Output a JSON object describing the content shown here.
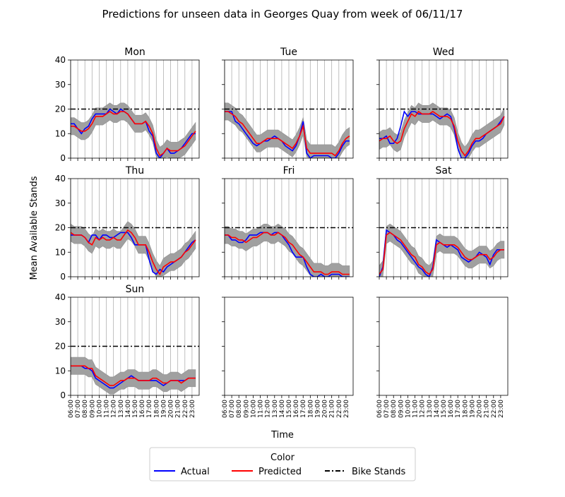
{
  "chart_data": {
    "type": "line",
    "title": "Predictions for unseen data in Georges Quay from week of 06/11/17",
    "xlabel": "Time",
    "ylabel": "Mean Available Stands",
    "ylim": [
      0,
      40
    ],
    "yticks": [
      0,
      10,
      20,
      30,
      40
    ],
    "time_ticks": [
      "06:00",
      "07:00",
      "08:00",
      "09:00",
      "10:00",
      "11:00",
      "12:00",
      "13:00",
      "14:00",
      "15:00",
      "16:00",
      "17:00",
      "18:00",
      "19:00",
      "20:00",
      "21:00",
      "22:00",
      "23:00"
    ],
    "grid": true,
    "bike_stands": 20,
    "band_half_width": 3.5,
    "colors": {
      "actual": "#0000ff",
      "predicted": "#ff0000",
      "bike_stands": "#000000",
      "band": "#a0a0a0"
    },
    "legend": {
      "title": "Color",
      "position": "bottom-center",
      "entries": [
        {
          "label": "Actual",
          "color": "#0000ff",
          "style": "solid"
        },
        {
          "label": "Predicted",
          "color": "#ff0000",
          "style": "solid"
        },
        {
          "label": "Bike Stands",
          "color": "#000000",
          "style": "dashdot"
        }
      ]
    },
    "panels": [
      {
        "title": "Mon",
        "x": [
          6,
          6.5,
          7,
          7.5,
          8,
          8.5,
          9,
          9.5,
          10,
          10.5,
          11,
          11.5,
          12,
          12.5,
          13,
          13.5,
          14,
          14.5,
          15,
          15.5,
          16,
          16.5,
          17,
          17.5,
          18,
          18.5,
          19,
          19.5,
          20,
          20.5,
          21,
          21.5,
          22,
          22.5,
          23,
          23.5
        ],
        "actual": [
          14,
          14,
          12,
          10,
          12,
          13,
          16,
          18,
          18,
          18,
          18,
          20,
          19,
          18,
          20,
          19,
          18,
          16,
          14,
          14,
          14,
          15,
          11,
          9,
          2,
          0,
          2,
          4,
          2,
          2,
          3,
          4,
          6,
          8,
          10,
          10
        ],
        "predicted": [
          13,
          13,
          12,
          11,
          11,
          12,
          14,
          17,
          17,
          17,
          18,
          19,
          18,
          18,
          19,
          19,
          18,
          16,
          14,
          14,
          14,
          15,
          13,
          10,
          4,
          1,
          2,
          4,
          3,
          3,
          3,
          4,
          5,
          7,
          9,
          11
        ]
      },
      {
        "title": "Tue",
        "x": [
          6,
          6.5,
          7,
          7.5,
          8,
          8.5,
          9,
          9.5,
          10,
          10.5,
          11,
          11.5,
          12,
          12.5,
          13,
          13.5,
          14,
          14.5,
          15,
          15.5,
          16,
          16.5,
          17,
          17.5,
          18,
          18.5,
          19,
          19.5,
          20,
          20.5,
          21,
          21.5,
          22,
          22.5,
          23,
          23.5
        ],
        "actual": [
          19,
          19,
          19,
          15,
          14,
          12,
          10,
          8,
          6,
          5,
          6,
          7,
          7,
          8,
          9,
          8,
          7,
          5,
          4,
          3,
          5,
          9,
          15,
          2,
          0,
          1,
          1,
          1,
          1,
          1,
          0,
          0,
          2,
          5,
          7,
          7
        ],
        "predicted": [
          19,
          19,
          18,
          17,
          15,
          14,
          12,
          10,
          8,
          6,
          6,
          7,
          8,
          8,
          8,
          8,
          7,
          6,
          5,
          4,
          6,
          9,
          13,
          4,
          2,
          2,
          2,
          2,
          2,
          2,
          2,
          1,
          3,
          6,
          8,
          9
        ]
      },
      {
        "title": "Wed",
        "x": [
          6,
          6.5,
          7,
          7.5,
          8,
          8.5,
          9,
          9.5,
          10,
          10.5,
          11,
          11.5,
          12,
          12.5,
          13,
          13.5,
          14,
          14.5,
          15,
          15.5,
          16,
          16.5,
          17,
          17.5,
          18,
          18.5,
          19,
          19.5,
          20,
          20.5,
          21,
          21.5,
          22,
          22.5,
          23,
          23.5
        ],
        "actual": [
          8,
          8,
          9,
          6,
          6,
          8,
          13,
          19,
          17,
          19,
          19,
          18,
          18,
          18,
          18,
          18,
          17,
          16,
          17,
          18,
          17,
          12,
          4,
          0,
          0,
          2,
          5,
          7,
          7,
          8,
          10,
          11,
          12,
          13,
          15,
          17
        ],
        "predicted": [
          7,
          8,
          8,
          9,
          7,
          6,
          7,
          12,
          15,
          18,
          17,
          19,
          18,
          18,
          18,
          19,
          18,
          17,
          17,
          17,
          16,
          13,
          7,
          3,
          1,
          3,
          6,
          8,
          8,
          9,
          10,
          11,
          12,
          13,
          14,
          17
        ]
      },
      {
        "title": "Thu",
        "x": [
          6,
          6.5,
          7,
          7.5,
          8,
          8.5,
          9,
          9.5,
          10,
          10.5,
          11,
          11.5,
          12,
          12.5,
          13,
          13.5,
          14,
          14.5,
          15,
          15.5,
          16,
          16.5,
          17,
          17.5,
          18,
          18.5,
          19,
          19.5,
          20,
          20.5,
          21,
          21.5,
          22,
          22.5,
          23,
          23.5
        ],
        "actual": [
          17,
          17,
          17,
          17,
          16,
          14,
          17,
          17,
          15,
          17,
          17,
          16,
          16,
          17,
          18,
          18,
          18,
          16,
          13,
          13,
          13,
          13,
          7,
          2,
          1,
          3,
          2,
          4,
          5,
          6,
          7,
          8,
          10,
          12,
          14,
          15
        ],
        "predicted": [
          18,
          17,
          17,
          17,
          16,
          14,
          13,
          16,
          15,
          16,
          15,
          15,
          16,
          15,
          15,
          17,
          19,
          18,
          16,
          13,
          13,
          13,
          10,
          6,
          3,
          1,
          4,
          5,
          6,
          6,
          7,
          8,
          10,
          11,
          13,
          15
        ]
      },
      {
        "title": "Fri",
        "x": [
          6,
          6.5,
          7,
          7.5,
          8,
          8.5,
          9,
          9.5,
          10,
          10.5,
          11,
          11.5,
          12,
          12.5,
          13,
          13.5,
          14,
          14.5,
          15,
          15.5,
          16,
          16.5,
          17,
          17.5,
          18,
          18.5,
          19,
          19.5,
          20,
          20.5,
          21,
          21.5,
          22,
          22.5,
          23,
          23.5
        ],
        "actual": [
          17,
          17,
          15,
          15,
          14,
          14,
          15,
          17,
          17,
          17,
          18,
          18,
          18,
          17,
          18,
          18,
          17,
          15,
          13,
          10,
          8,
          8,
          8,
          4,
          1,
          0,
          0,
          1,
          0,
          0,
          1,
          1,
          1,
          0,
          0,
          0
        ],
        "predicted": [
          17,
          17,
          16,
          16,
          15,
          15,
          14,
          15,
          16,
          16,
          17,
          18,
          18,
          17,
          17,
          18,
          17,
          16,
          14,
          13,
          11,
          9,
          8,
          6,
          4,
          2,
          2,
          2,
          1,
          1,
          2,
          2,
          2,
          1,
          1,
          1
        ]
      },
      {
        "title": "Sat",
        "x": [
          6,
          6.5,
          7,
          7.5,
          8,
          8.5,
          9,
          9.5,
          10,
          10.5,
          11,
          11.5,
          12,
          12.5,
          13,
          13.5,
          14,
          14.5,
          15,
          15.5,
          16,
          16.5,
          17,
          17.5,
          18,
          18.5,
          19,
          19.5,
          20,
          20.5,
          21,
          21.5,
          22,
          22.5,
          23,
          23.5
        ],
        "actual": [
          0,
          4,
          19,
          18,
          17,
          15,
          14,
          12,
          10,
          8,
          6,
          4,
          3,
          1,
          0,
          4,
          15,
          14,
          13,
          12,
          13,
          12,
          11,
          8,
          7,
          6,
          7,
          8,
          10,
          9,
          8,
          5,
          9,
          11,
          11,
          11
        ],
        "predicted": [
          1,
          3,
          17,
          18,
          17,
          16,
          15,
          13,
          11,
          9,
          8,
          5,
          4,
          2,
          1,
          3,
          13,
          14,
          13,
          13,
          13,
          13,
          12,
          10,
          8,
          7,
          7,
          8,
          9,
          9,
          9,
          7,
          8,
          10,
          11,
          11
        ]
      },
      {
        "title": "Sun",
        "x": [
          6,
          6.5,
          7,
          7.5,
          8,
          8.5,
          9,
          9.5,
          10,
          10.5,
          11,
          11.5,
          12,
          12.5,
          13,
          13.5,
          14,
          14.5,
          15,
          15.5,
          16,
          16.5,
          17,
          17.5,
          18,
          18.5,
          19,
          19.5,
          20,
          20.5,
          21,
          21.5,
          22,
          22.5,
          23,
          23.5
        ],
        "actual": [
          12,
          12,
          12,
          12,
          11,
          11,
          10,
          7,
          6,
          5,
          4,
          3,
          3,
          4,
          5,
          6,
          7,
          8,
          7,
          6,
          6,
          6,
          6,
          6,
          6,
          5,
          4,
          5,
          6,
          6,
          6,
          6,
          6,
          7,
          7,
          7
        ],
        "predicted": [
          12,
          12,
          12,
          12,
          12,
          11,
          11,
          8,
          7,
          6,
          5,
          4,
          4,
          5,
          6,
          6,
          7,
          7,
          7,
          6,
          6,
          6,
          6,
          7,
          7,
          6,
          5,
          5,
          6,
          6,
          6,
          5,
          6,
          7,
          7,
          7
        ]
      }
    ]
  }
}
